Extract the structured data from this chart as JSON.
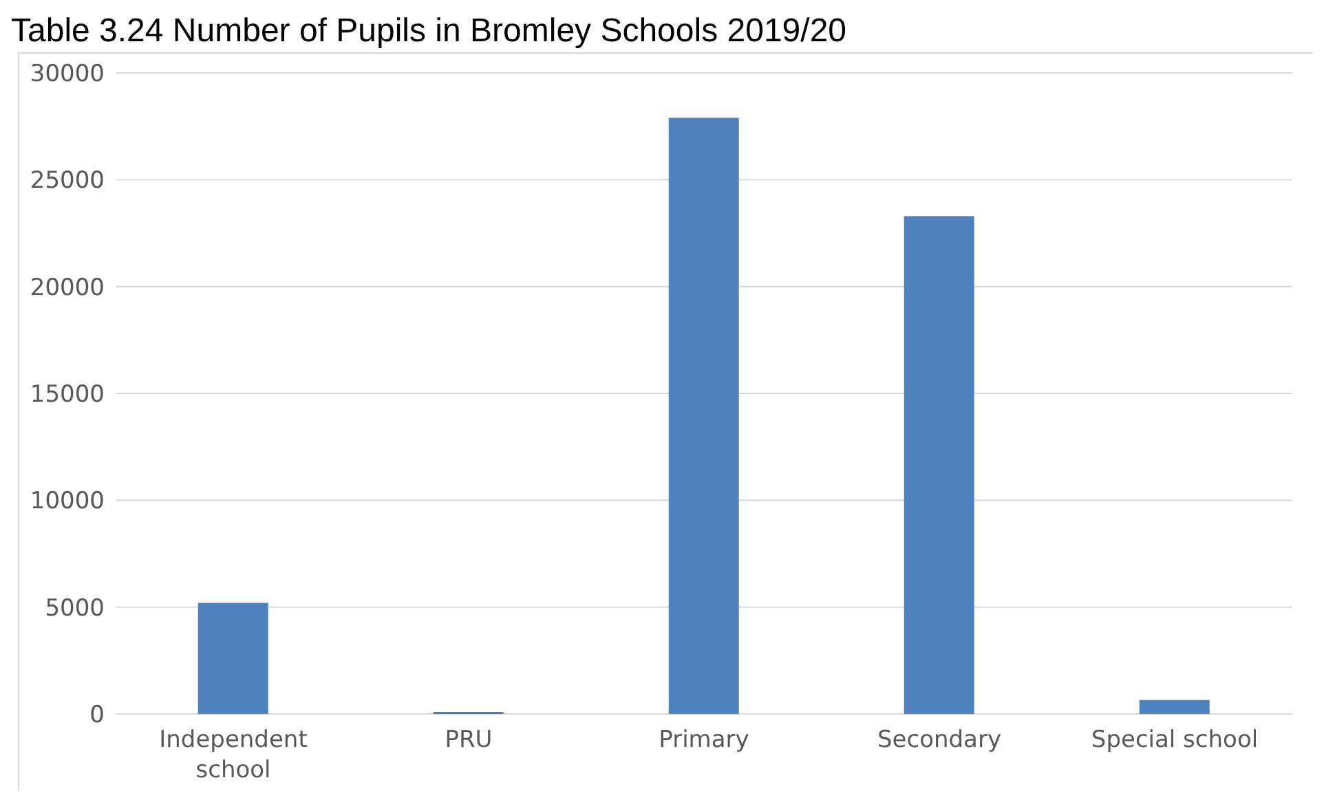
{
  "chart_data": {
    "type": "bar",
    "title": "Table 3.24 Number of Pupils in Bromley Schools 2019/20",
    "categories": [
      "Independent school",
      "PRU",
      "Primary",
      "Secondary",
      "Special school"
    ],
    "values": [
      5200,
      100,
      27900,
      23300,
      650
    ],
    "color": "#4f81bd",
    "ylim": [
      0,
      30000
    ],
    "yticks": [
      0,
      5000,
      10000,
      15000,
      20000,
      25000,
      30000
    ],
    "grid": "y"
  }
}
